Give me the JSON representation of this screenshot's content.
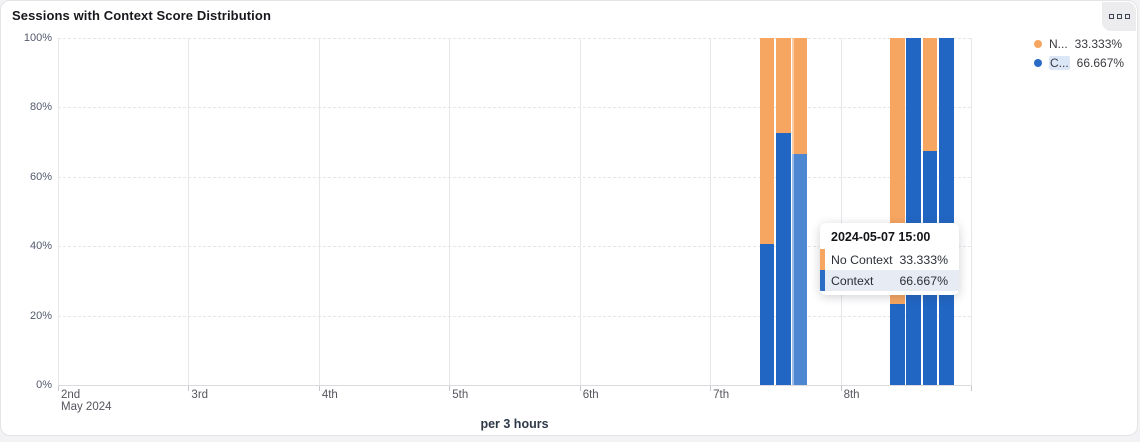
{
  "header": {
    "title": "Sessions with Context Score Distribution"
  },
  "panel_button": {
    "icon": "three-squares"
  },
  "colors": {
    "context_blue": "#2266c3",
    "context_blue_highlight": "#4e87d1",
    "no_context_orange": "#f7a661",
    "grid": "#e7e7ea",
    "axis": "#dbdbdf",
    "legend_highlight": "#dbe6f6",
    "tooltip_row_highlight": "#e6ebf4"
  },
  "legend": {
    "items": [
      {
        "name_truncated": "N...",
        "full_name": "No Context",
        "value": "33.333%",
        "color": "#f7a661",
        "highlighted": false
      },
      {
        "name_truncated": "C...",
        "full_name": "Context",
        "value": "66.667%",
        "color": "#2a6bc6",
        "highlighted": true
      }
    ]
  },
  "tooltip": {
    "title": "2024-05-07 15:00",
    "rows": [
      {
        "label": "No Context",
        "value": "33.333%",
        "color": "#f7a661",
        "highlighted": false
      },
      {
        "label": "Context",
        "value": "66.667%",
        "color": "#2a6bc6",
        "highlighted": true
      }
    ]
  },
  "chart_data": {
    "type": "bar",
    "stacked": true,
    "unit": "percent",
    "title": "Sessions with Context Score Distribution",
    "xlabel": "per 3 hours",
    "ylabel": "",
    "ylim": [
      0,
      100
    ],
    "grid": "horizontal-dashed, vertical-solid-per-day",
    "legend_position": "top-right",
    "x_axis": {
      "start": "2024-05-02 00:00",
      "end": "2024-05-09 00:00",
      "interval_hours": 3,
      "tick_labels": [
        "2nd",
        "3rd",
        "4th",
        "5th",
        "6th",
        "7th",
        "8th"
      ],
      "sub_label": "May 2024"
    },
    "y_ticks": [
      "0%",
      "20%",
      "40%",
      "60%",
      "80%",
      "100%"
    ],
    "series": [
      {
        "name": "Context",
        "color": "#2266c3"
      },
      {
        "name": "No Context",
        "color": "#f7a661"
      }
    ],
    "bars": [
      {
        "time": "2024-05-07 09:00",
        "context": 40.5,
        "no_context": 59.5,
        "highlighted": false
      },
      {
        "time": "2024-05-07 12:00",
        "context": 72.7,
        "no_context": 27.3,
        "highlighted": false
      },
      {
        "time": "2024-05-07 15:00",
        "context": 66.667,
        "no_context": 33.333,
        "highlighted": true
      },
      {
        "time": "2024-05-08 09:00",
        "context": 23.3,
        "no_context": 76.7,
        "highlighted": false
      },
      {
        "time": "2024-05-08 12:00",
        "context": 100,
        "no_context": 0,
        "highlighted": false
      },
      {
        "time": "2024-05-08 15:00",
        "context": 67.5,
        "no_context": 32.5,
        "highlighted": false
      },
      {
        "time": "2024-05-08 18:00",
        "context": 100,
        "no_context": 0,
        "highlighted": false
      }
    ]
  }
}
